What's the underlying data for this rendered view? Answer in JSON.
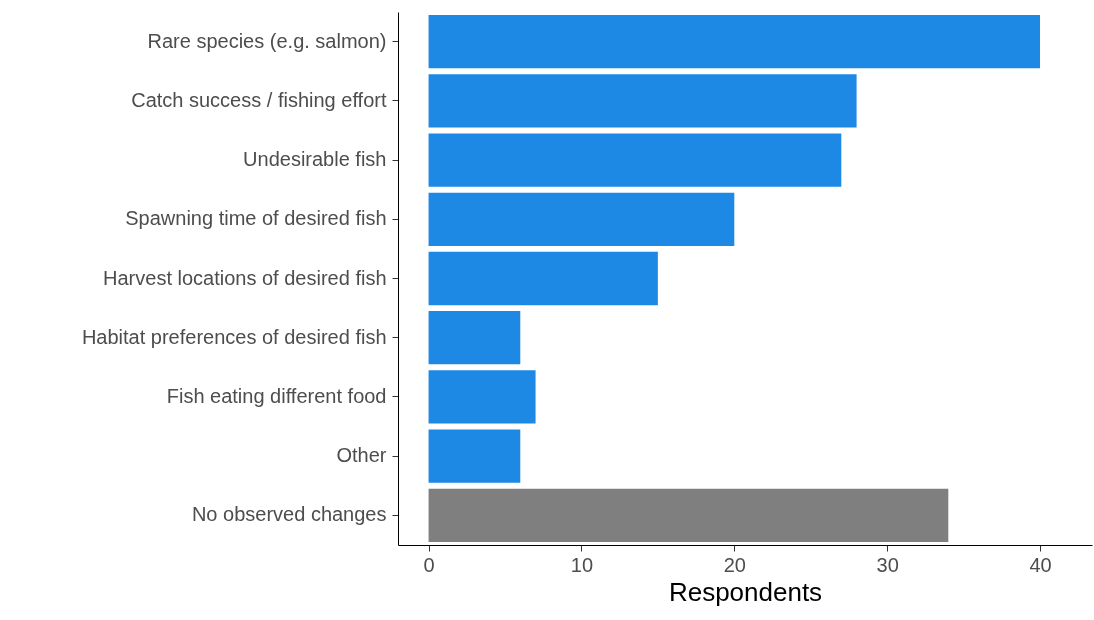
{
  "chart_data": {
    "type": "bar",
    "orientation": "horizontal",
    "xlabel": "Respondents",
    "categories": [
      "Rare species (e.g. salmon)",
      "Catch success / fishing effort",
      "Undesirable fish",
      "Spawning time of desired fish",
      "Harvest locations of desired fish",
      "Habitat preferences of desired fish",
      "Fish eating different food",
      "Other",
      "No observed changes"
    ],
    "values": [
      40,
      28,
      27,
      20,
      15,
      6,
      7,
      6,
      34
    ],
    "colors": [
      "#1e88e5",
      "#1e88e5",
      "#1e88e5",
      "#1e88e5",
      "#1e88e5",
      "#1e88e5",
      "#1e88e5",
      "#1e88e5",
      "#7f7f7f"
    ],
    "xlim": [
      -2,
      43.4
    ],
    "xticks": [
      0,
      10,
      20,
      30,
      40
    ]
  }
}
